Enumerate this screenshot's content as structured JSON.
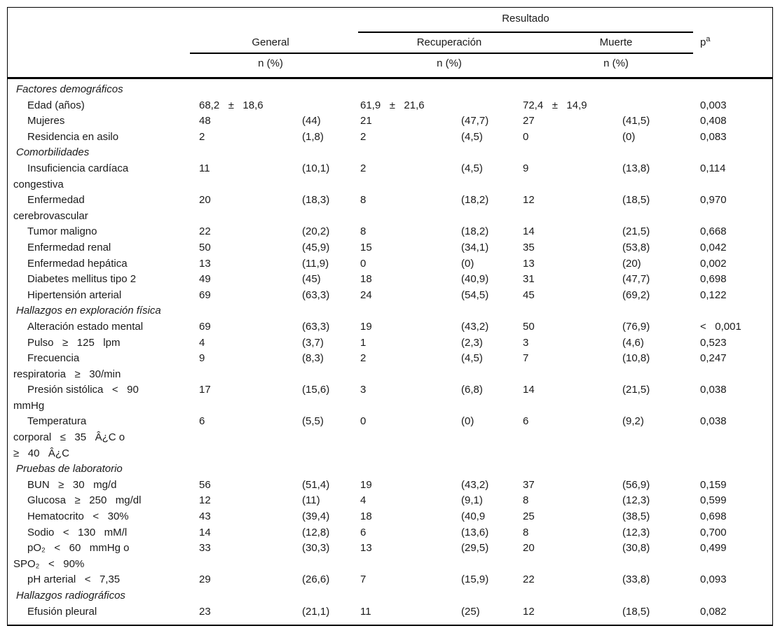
{
  "table": {
    "header": {
      "resultado": "Resultado",
      "general": "General",
      "recuperacion": "Recuperación",
      "muerte": "Muerte",
      "p_label": "p",
      "p_sup": "a",
      "n_pct_general": "n (%)",
      "n_pct_recuperacion": "n (%)",
      "n_pct_muerte": "n (%)"
    },
    "columns": [
      "label",
      "general_n",
      "general_pct",
      "recuperacion_n",
      "recuperacion_pct",
      "muerte_n",
      "muerte_pct",
      "p"
    ],
    "rows": [
      {
        "type": "section",
        "lines": [
          "Factores demográficos"
        ],
        "cells": [
          "",
          "",
          "",
          "",
          "",
          "",
          ""
        ]
      },
      {
        "type": "item",
        "lines": [
          "Edad (años)"
        ],
        "cells": [
          "68,2   ±   18,6",
          "",
          "61,9   ±   21,6",
          "",
          "72,4   ±   14,9",
          "",
          "0,003"
        ]
      },
      {
        "type": "item",
        "lines": [
          "Mujeres"
        ],
        "cells": [
          "48",
          "(44)",
          "21",
          "(47,7)",
          "27",
          "(41,5)",
          "0,408"
        ]
      },
      {
        "type": "item",
        "lines": [
          "Residencia en asilo"
        ],
        "cells": [
          "2",
          "(1,8)",
          "2",
          "(4,5)",
          "0",
          "(0)",
          "0,083"
        ]
      },
      {
        "type": "section",
        "lines": [
          "Comorbilidades"
        ],
        "cells": [
          "",
          "",
          "",
          "",
          "",
          "",
          ""
        ]
      },
      {
        "type": "item",
        "lines": [
          "Insuficiencia cardíaca",
          "congestiva"
        ],
        "cells": [
          "11",
          "(10,1)",
          "2",
          "(4,5)",
          "9",
          "(13,8)",
          "0,114"
        ]
      },
      {
        "type": "item",
        "lines": [
          "Enfermedad",
          "cerebrovascular"
        ],
        "cells": [
          "20",
          "(18,3)",
          "8",
          "(18,2)",
          "12",
          "(18,5)",
          "0,970"
        ]
      },
      {
        "type": "item",
        "lines": [
          "Tumor maligno"
        ],
        "cells": [
          "22",
          "(20,2)",
          "8",
          "(18,2)",
          "14",
          "(21,5)",
          "0,668"
        ]
      },
      {
        "type": "item",
        "lines": [
          "Enfermedad renal"
        ],
        "cells": [
          "50",
          "(45,9)",
          "15",
          "(34,1)",
          "35",
          "(53,8)",
          "0,042"
        ]
      },
      {
        "type": "item",
        "lines": [
          "Enfermedad hepática"
        ],
        "cells": [
          "13",
          "(11,9)",
          "0",
          "(0)",
          "13",
          "(20)",
          "0,002"
        ]
      },
      {
        "type": "item",
        "lines": [
          "Diabetes mellitus tipo 2"
        ],
        "cells": [
          "49",
          "(45)",
          "18",
          "(40,9)",
          "31",
          "(47,7)",
          "0,698"
        ]
      },
      {
        "type": "item",
        "lines": [
          "Hipertensión arterial"
        ],
        "cells": [
          "69",
          "(63,3)",
          "24",
          "(54,5)",
          "45",
          "(69,2)",
          "0,122"
        ]
      },
      {
        "type": "section",
        "lines": [
          "Hallazgos en exploración física"
        ],
        "cells": [
          "",
          "",
          "",
          "",
          "",
          "",
          ""
        ]
      },
      {
        "type": "item",
        "lines": [
          "Alteración estado mental"
        ],
        "cells": [
          "69",
          "(63,3)",
          "19",
          "(43,2)",
          "50",
          "(76,9)",
          "<   0,001"
        ]
      },
      {
        "type": "item",
        "lines": [
          "Pulso   ≥   125   lpm"
        ],
        "cells": [
          "4",
          "(3,7)",
          "1",
          "(2,3)",
          "3",
          "(4,6)",
          "0,523"
        ]
      },
      {
        "type": "item",
        "lines": [
          "Frecuencia",
          "respiratoria   ≥   30/min"
        ],
        "cells": [
          "9",
          "(8,3)",
          "2",
          "(4,5)",
          "7",
          "(10,8)",
          "0,247"
        ]
      },
      {
        "type": "item",
        "lines": [
          "Presión sistólica   <   90",
          "mmHg"
        ],
        "cells": [
          "17",
          "(15,6)",
          "3",
          "(6,8)",
          "14",
          "(21,5)",
          "0,038"
        ]
      },
      {
        "type": "item",
        "lines": [
          "Temperatura",
          "corporal   ≤   35   Â¿C o",
          "≥   40   Â¿C"
        ],
        "cells": [
          "6",
          "(5,5)",
          "0",
          "(0)",
          "6",
          "(9,2)",
          "0,038"
        ]
      },
      {
        "type": "section",
        "lines": [
          "Pruebas de laboratorio"
        ],
        "cells": [
          "",
          "",
          "",
          "",
          "",
          "",
          ""
        ]
      },
      {
        "type": "item",
        "lines": [
          "BUN   ≥   30   mg/d"
        ],
        "cells": [
          "56",
          "(51,4)",
          "19",
          "(43,2)",
          "37",
          "(56,9)",
          "0,159"
        ]
      },
      {
        "type": "item",
        "lines": [
          "Glucosa   ≥   250   mg/dl"
        ],
        "cells": [
          "12",
          "(11)",
          "4",
          "(9,1)",
          "8",
          "(12,3)",
          "0,599"
        ]
      },
      {
        "type": "item",
        "lines": [
          "Hematocrito   <   30%"
        ],
        "cells": [
          "43",
          "(39,4)",
          "18",
          "(40,9",
          "25",
          "(38,5)",
          "0,698"
        ]
      },
      {
        "type": "item",
        "lines": [
          "Sodio   <   130   mM/l"
        ],
        "cells": [
          "14",
          "(12,8)",
          "6",
          "(13,6)",
          "8",
          "(12,3)",
          "0,700"
        ]
      },
      {
        "type": "item",
        "lines": [
          "pO₂   <   60   mmHg o",
          "SPO₂   <   90%"
        ],
        "cells": [
          "33",
          "(30,3)",
          "13",
          "(29,5)",
          "20",
          "(30,8)",
          "0,499"
        ]
      },
      {
        "type": "item",
        "lines": [
          "pH arterial   <   7,35"
        ],
        "cells": [
          "29",
          "(26,6)",
          "7",
          "(15,9)",
          "22",
          "(33,8)",
          "0,093"
        ]
      },
      {
        "type": "section",
        "lines": [
          "Hallazgos radiográficos"
        ],
        "cells": [
          "",
          "",
          "",
          "",
          "",
          "",
          ""
        ]
      },
      {
        "type": "item",
        "lines": [
          "Efusión pleural"
        ],
        "cells": [
          "23",
          "(21,1)",
          "11",
          "(25)",
          "12",
          "(18,5)",
          "0,082"
        ]
      }
    ]
  },
  "colors": {
    "background": "#ffffff",
    "text": "#1a1a1a",
    "rule": "#000000"
  }
}
